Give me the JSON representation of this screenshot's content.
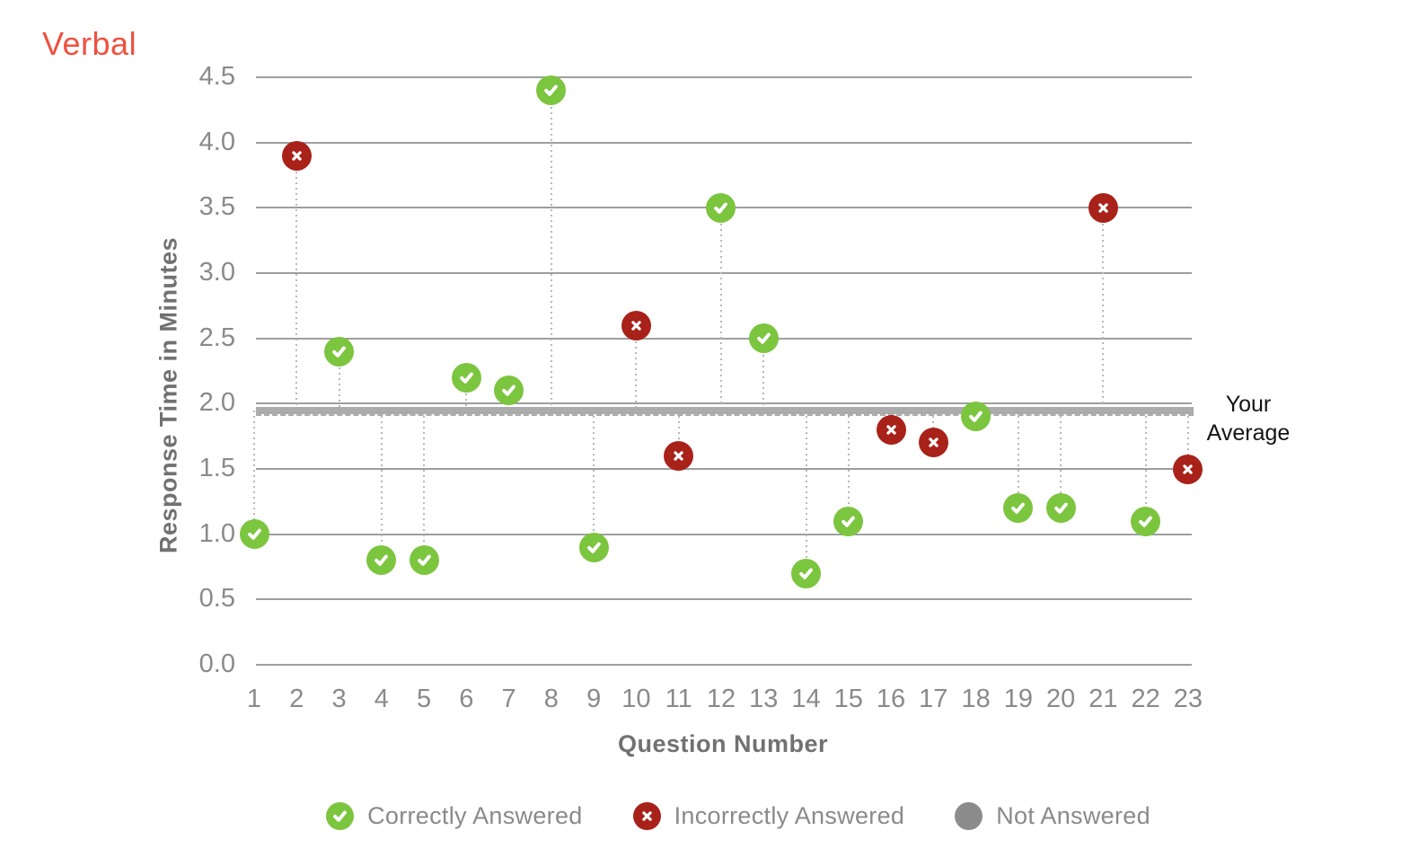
{
  "chart_data": {
    "type": "scatter",
    "title": "Verbal",
    "xlabel": "Question Number",
    "ylabel": "Response Time in Minutes",
    "ylim": [
      0,
      4.5
    ],
    "ytick_step": 0.5,
    "grid": true,
    "legend_position": "bottom",
    "average_line": {
      "label": "Your Average",
      "value": 1.95
    },
    "points": [
      {
        "question": 1,
        "minutes": 1.0,
        "status": "correct"
      },
      {
        "question": 2,
        "minutes": 3.9,
        "status": "incorrect"
      },
      {
        "question": 3,
        "minutes": 2.4,
        "status": "correct"
      },
      {
        "question": 4,
        "minutes": 0.8,
        "status": "correct"
      },
      {
        "question": 5,
        "minutes": 0.8,
        "status": "correct"
      },
      {
        "question": 6,
        "minutes": 2.2,
        "status": "correct"
      },
      {
        "question": 7,
        "minutes": 2.1,
        "status": "correct"
      },
      {
        "question": 8,
        "minutes": 4.4,
        "status": "correct"
      },
      {
        "question": 9,
        "minutes": 0.9,
        "status": "correct"
      },
      {
        "question": 10,
        "minutes": 2.6,
        "status": "incorrect"
      },
      {
        "question": 11,
        "minutes": 1.6,
        "status": "incorrect"
      },
      {
        "question": 12,
        "minutes": 3.5,
        "status": "correct"
      },
      {
        "question": 13,
        "minutes": 2.5,
        "status": "correct"
      },
      {
        "question": 14,
        "minutes": 0.7,
        "status": "correct"
      },
      {
        "question": 15,
        "minutes": 1.1,
        "status": "correct"
      },
      {
        "question": 16,
        "minutes": 1.8,
        "status": "incorrect"
      },
      {
        "question": 17,
        "minutes": 1.7,
        "status": "incorrect"
      },
      {
        "question": 18,
        "minutes": 1.9,
        "status": "correct"
      },
      {
        "question": 19,
        "minutes": 1.2,
        "status": "correct"
      },
      {
        "question": 20,
        "minutes": 1.2,
        "status": "correct"
      },
      {
        "question": 21,
        "minutes": 3.5,
        "status": "incorrect"
      },
      {
        "question": 22,
        "minutes": 1.1,
        "status": "correct"
      },
      {
        "question": 23,
        "minutes": 1.5,
        "status": "incorrect"
      }
    ]
  },
  "legend": {
    "items": [
      {
        "label": "Correctly Answered",
        "status": "correct"
      },
      {
        "label": "Incorrectly Answered",
        "status": "incorrect"
      },
      {
        "label": "Not Answered",
        "status": "not_answered"
      }
    ]
  },
  "colors": {
    "correct": "#7CC53F",
    "incorrect": "#A8221A",
    "not_answered": "#8C8C8C",
    "title": "#EE5140",
    "gridline": "#9E9E9E",
    "tick_label": "#8A8A8A",
    "axis_title": "#717171",
    "legend_text": "#8A8A8A",
    "average_band": "#ABABAB",
    "average_label": "#141414",
    "stem": "#B8B8B8"
  }
}
